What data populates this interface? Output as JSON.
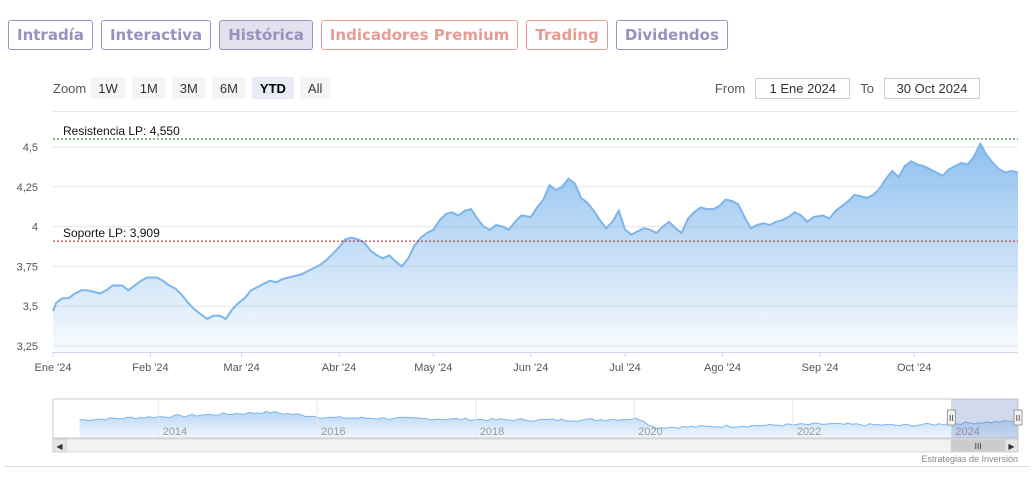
{
  "tabs": [
    {
      "label": "Intradía",
      "color": "#9b8fc0",
      "active": false
    },
    {
      "label": "Interactiva",
      "color": "#9b8fc0",
      "active": false
    },
    {
      "label": "Histórica",
      "color": "#9b8fc0",
      "active": true
    },
    {
      "label": "Indicadores Premium",
      "color": "#e89b94",
      "active": false
    },
    {
      "label": "Trading",
      "color": "#e89b94",
      "active": false
    },
    {
      "label": "Dividendos",
      "color": "#9b8fc0",
      "active": false
    }
  ],
  "zoom": {
    "label": "Zoom",
    "buttons": [
      "1W",
      "1M",
      "3M",
      "6M",
      "YTD",
      "All"
    ],
    "selected": "YTD"
  },
  "range": {
    "from_label": "From",
    "from_value": "1 Ene 2024",
    "to_label": "To",
    "to_value": "30 Oct 2024"
  },
  "credit": "Estrategias de Inversión",
  "chart_data": {
    "type": "area",
    "series_color": "#7cb5ec",
    "x_ticks": [
      "Ene '24",
      "Feb '24",
      "Mar '24",
      "Abr '24",
      "May '24",
      "Jun '24",
      "Jul '24",
      "Ago '24",
      "Sep '24",
      "Oct '24"
    ],
    "y_ticks": [
      "3,25",
      "3,5",
      "3,75",
      "4",
      "4,25",
      "4,5"
    ],
    "ylim": [
      3.25,
      4.5
    ],
    "grid": true,
    "points": [
      [
        "2024-01-01",
        3.47
      ],
      [
        "2024-01-02",
        3.52
      ],
      [
        "2024-01-04",
        3.55
      ],
      [
        "2024-01-06",
        3.55
      ],
      [
        "2024-01-08",
        3.58
      ],
      [
        "2024-01-10",
        3.6
      ],
      [
        "2024-01-12",
        3.6
      ],
      [
        "2024-01-14",
        3.59
      ],
      [
        "2024-01-16",
        3.58
      ],
      [
        "2024-01-18",
        3.6
      ],
      [
        "2024-01-20",
        3.63
      ],
      [
        "2024-01-23",
        3.63
      ],
      [
        "2024-01-25",
        3.6
      ],
      [
        "2024-01-27",
        3.63
      ],
      [
        "2024-01-29",
        3.66
      ],
      [
        "2024-01-31",
        3.68
      ],
      [
        "2024-02-03",
        3.68
      ],
      [
        "2024-02-05",
        3.66
      ],
      [
        "2024-02-07",
        3.63
      ],
      [
        "2024-02-09",
        3.61
      ],
      [
        "2024-02-11",
        3.57
      ],
      [
        "2024-02-13",
        3.52
      ],
      [
        "2024-02-15",
        3.48
      ],
      [
        "2024-02-17",
        3.45
      ],
      [
        "2024-02-19",
        3.42
      ],
      [
        "2024-02-21",
        3.44
      ],
      [
        "2024-02-23",
        3.44
      ],
      [
        "2024-02-25",
        3.42
      ],
      [
        "2024-02-27",
        3.48
      ],
      [
        "2024-02-29",
        3.52
      ],
      [
        "2024-03-02",
        3.55
      ],
      [
        "2024-03-04",
        3.6
      ],
      [
        "2024-03-06",
        3.62
      ],
      [
        "2024-03-08",
        3.64
      ],
      [
        "2024-03-10",
        3.66
      ],
      [
        "2024-03-12",
        3.65
      ],
      [
        "2024-03-14",
        3.67
      ],
      [
        "2024-03-16",
        3.68
      ],
      [
        "2024-03-18",
        3.69
      ],
      [
        "2024-03-20",
        3.7
      ],
      [
        "2024-03-22",
        3.72
      ],
      [
        "2024-03-24",
        3.74
      ],
      [
        "2024-03-26",
        3.76
      ],
      [
        "2024-03-28",
        3.79
      ],
      [
        "2024-03-30",
        3.83
      ],
      [
        "2024-04-01",
        3.87
      ],
      [
        "2024-04-03",
        3.92
      ],
      [
        "2024-04-05",
        3.93
      ],
      [
        "2024-04-07",
        3.92
      ],
      [
        "2024-04-09",
        3.9
      ],
      [
        "2024-04-11",
        3.85
      ],
      [
        "2024-04-13",
        3.82
      ],
      [
        "2024-04-15",
        3.8
      ],
      [
        "2024-04-17",
        3.82
      ],
      [
        "2024-04-19",
        3.78
      ],
      [
        "2024-04-21",
        3.75
      ],
      [
        "2024-04-23",
        3.8
      ],
      [
        "2024-04-25",
        3.88
      ],
      [
        "2024-04-27",
        3.93
      ],
      [
        "2024-04-29",
        3.96
      ],
      [
        "2024-05-01",
        3.98
      ],
      [
        "2024-05-03",
        4.04
      ],
      [
        "2024-05-05",
        4.08
      ],
      [
        "2024-05-07",
        4.09
      ],
      [
        "2024-05-09",
        4.07
      ],
      [
        "2024-05-11",
        4.1
      ],
      [
        "2024-05-13",
        4.11
      ],
      [
        "2024-05-15",
        4.05
      ],
      [
        "2024-05-17",
        4.0
      ],
      [
        "2024-05-19",
        3.98
      ],
      [
        "2024-05-21",
        4.01
      ],
      [
        "2024-05-23",
        4.0
      ],
      [
        "2024-05-25",
        3.98
      ],
      [
        "2024-05-27",
        4.03
      ],
      [
        "2024-05-29",
        4.07
      ],
      [
        "2024-06-01",
        4.06
      ],
      [
        "2024-06-03",
        4.12
      ],
      [
        "2024-06-05",
        4.17
      ],
      [
        "2024-06-07",
        4.26
      ],
      [
        "2024-06-09",
        4.23
      ],
      [
        "2024-06-11",
        4.25
      ],
      [
        "2024-06-13",
        4.3
      ],
      [
        "2024-06-15",
        4.27
      ],
      [
        "2024-06-17",
        4.18
      ],
      [
        "2024-06-19",
        4.15
      ],
      [
        "2024-06-21",
        4.1
      ],
      [
        "2024-06-23",
        4.04
      ],
      [
        "2024-06-25",
        3.99
      ],
      [
        "2024-06-27",
        4.03
      ],
      [
        "2024-06-29",
        4.1
      ],
      [
        "2024-07-01",
        3.98
      ],
      [
        "2024-07-03",
        3.95
      ],
      [
        "2024-07-05",
        3.97
      ],
      [
        "2024-07-07",
        3.99
      ],
      [
        "2024-07-09",
        3.98
      ],
      [
        "2024-07-11",
        3.96
      ],
      [
        "2024-07-13",
        4.0
      ],
      [
        "2024-07-15",
        4.03
      ],
      [
        "2024-07-17",
        3.99
      ],
      [
        "2024-07-19",
        3.96
      ],
      [
        "2024-07-21",
        4.05
      ],
      [
        "2024-07-23",
        4.09
      ],
      [
        "2024-07-25",
        4.12
      ],
      [
        "2024-07-27",
        4.11
      ],
      [
        "2024-07-29",
        4.11
      ],
      [
        "2024-07-31",
        4.13
      ],
      [
        "2024-08-02",
        4.17
      ],
      [
        "2024-08-04",
        4.16
      ],
      [
        "2024-08-06",
        4.14
      ],
      [
        "2024-08-08",
        4.06
      ],
      [
        "2024-08-10",
        3.99
      ],
      [
        "2024-08-12",
        4.01
      ],
      [
        "2024-08-14",
        4.02
      ],
      [
        "2024-08-16",
        4.01
      ],
      [
        "2024-08-18",
        4.03
      ],
      [
        "2024-08-20",
        4.04
      ],
      [
        "2024-08-22",
        4.06
      ],
      [
        "2024-08-24",
        4.09
      ],
      [
        "2024-08-26",
        4.07
      ],
      [
        "2024-08-28",
        4.03
      ],
      [
        "2024-08-30",
        4.06
      ],
      [
        "2024-09-02",
        4.07
      ],
      [
        "2024-09-04",
        4.05
      ],
      [
        "2024-09-06",
        4.1
      ],
      [
        "2024-09-08",
        4.13
      ],
      [
        "2024-09-10",
        4.16
      ],
      [
        "2024-09-12",
        4.2
      ],
      [
        "2024-09-14",
        4.19
      ],
      [
        "2024-09-16",
        4.18
      ],
      [
        "2024-09-18",
        4.2
      ],
      [
        "2024-09-20",
        4.24
      ],
      [
        "2024-09-22",
        4.3
      ],
      [
        "2024-09-24",
        4.35
      ],
      [
        "2024-09-26",
        4.31
      ],
      [
        "2024-09-28",
        4.38
      ],
      [
        "2024-09-30",
        4.41
      ],
      [
        "2024-10-02",
        4.39
      ],
      [
        "2024-10-04",
        4.38
      ],
      [
        "2024-10-06",
        4.36
      ],
      [
        "2024-10-08",
        4.34
      ],
      [
        "2024-10-10",
        4.32
      ],
      [
        "2024-10-12",
        4.36
      ],
      [
        "2024-10-14",
        4.38
      ],
      [
        "2024-10-16",
        4.4
      ],
      [
        "2024-10-18",
        4.39
      ],
      [
        "2024-10-20",
        4.44
      ],
      [
        "2024-10-22",
        4.52
      ],
      [
        "2024-10-24",
        4.45
      ],
      [
        "2024-10-26",
        4.4
      ],
      [
        "2024-10-28",
        4.36
      ],
      [
        "2024-10-30",
        4.34
      ],
      [
        "2024-11-01",
        4.35
      ],
      [
        "2024-11-03",
        4.34
      ]
    ],
    "x_range": [
      "2024-01-01",
      "2024-11-03"
    ],
    "plot_lines": [
      {
        "label": "Resistencia LP: 4,550",
        "value": 4.55,
        "color": "#1a6b1a"
      },
      {
        "label": "Soporte LP: 3,909",
        "value": 3.909,
        "color": "#b01818"
      }
    ],
    "navigator": {
      "x_ticks": [
        "2014",
        "2016",
        "2018",
        "2020",
        "2022",
        "2024"
      ],
      "x_range": [
        "2012-09-01",
        "2024-11-03"
      ],
      "selected_range": [
        "2024-01-01",
        "2024-11-03"
      ],
      "handle_glyph": "II",
      "scrollbar_glyph": "III",
      "arrow_left": "◀",
      "arrow_right": "▶"
    }
  }
}
